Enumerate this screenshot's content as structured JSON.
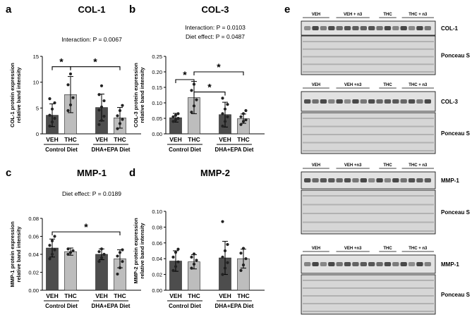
{
  "chart_data": [
    {
      "panel": "a",
      "title": "COL-1",
      "type": "bar",
      "ylabel": [
        "COL-1 protein expression",
        "relative band intensity"
      ],
      "ylim": [
        0,
        15
      ],
      "yticks": [
        0,
        5,
        10,
        15
      ],
      "categories": [
        "VEH",
        "THC",
        "VEH",
        "THC"
      ],
      "groups": [
        "Control Diet",
        "DHA+EPA Diet"
      ],
      "values": [
        3.6,
        7.6,
        5.1,
        3.1
      ],
      "errors": [
        2.2,
        3.5,
        2.6,
        2.0
      ],
      "points": [
        [
          1.5,
          2.3,
          3.0,
          3.6,
          4.8,
          6.0,
          6.8
        ],
        [
          4.5,
          5.6,
          7.0,
          9.5,
          11.6
        ],
        [
          1.8,
          2.6,
          3.4,
          4.6,
          5.2,
          6.4,
          7.6,
          9.3
        ],
        [
          1.0,
          2.0,
          2.8,
          3.5,
          4.5,
          5.5
        ]
      ],
      "annotation": "Interaction: P = 0.0067",
      "brackets": [
        {
          "from": 0,
          "to": 1,
          "y": 13,
          "label": "*"
        },
        {
          "from": 1,
          "to": 3,
          "y": 13,
          "label": "*"
        }
      ]
    },
    {
      "panel": "b",
      "title": "COL-3",
      "type": "bar",
      "ylabel": [
        "COL-3 protein expression",
        "relative band intensity"
      ],
      "ylim": [
        0,
        0.25
      ],
      "yticks": [
        "0.00",
        "0.05",
        "0.10",
        "0.15",
        "0.20",
        "0.25"
      ],
      "categories": [
        "VEH",
        "THC",
        "VEH",
        "THC"
      ],
      "groups": [
        "Control Diet",
        "DHA+EPA Diet"
      ],
      "values": [
        0.052,
        0.117,
        0.062,
        0.049
      ],
      "errors": [
        0.014,
        0.052,
        0.04,
        0.015
      ],
      "points": [
        [
          0.04,
          0.045,
          0.05,
          0.055,
          0.06,
          0.065
        ],
        [
          0.07,
          0.09,
          0.11,
          0.14,
          0.16
        ],
        [
          0.025,
          0.04,
          0.055,
          0.065,
          0.08,
          0.095,
          0.115
        ],
        [
          0.03,
          0.04,
          0.045,
          0.055,
          0.065,
          0.075
        ]
      ],
      "annotation": [
        "Interaction: P = 0.0103",
        "Diet effect: P = 0.0487"
      ],
      "brackets": [
        {
          "from": 0,
          "to": 1,
          "y": 0.175,
          "label": "*"
        },
        {
          "from": 1,
          "to": 2,
          "y": 0.135,
          "label": "*"
        },
        {
          "from": 1,
          "to": 3,
          "y": 0.2,
          "label": "*"
        }
      ]
    },
    {
      "panel": "c",
      "title": "MMP-1",
      "type": "bar",
      "ylabel": [
        "MMP-1 protein expression",
        "relative band intensity"
      ],
      "ylim": [
        0,
        0.08
      ],
      "yticks": [
        "0.00",
        "0.02",
        "0.04",
        "0.06",
        "0.08"
      ],
      "categories": [
        "VEH",
        "THC",
        "VEH",
        "THC"
      ],
      "groups": [
        "Control Diet",
        "DHA+EPA Diet"
      ],
      "values": [
        0.047,
        0.043,
        0.04,
        0.035
      ],
      "errors": [
        0.01,
        0.004,
        0.006,
        0.01
      ],
      "points": [
        [
          0.035,
          0.04,
          0.045,
          0.05,
          0.055,
          0.06
        ],
        [
          0.04,
          0.042,
          0.044,
          0.046
        ],
        [
          0.032,
          0.036,
          0.04,
          0.043,
          0.046
        ],
        [
          0.018,
          0.025,
          0.032,
          0.038,
          0.042,
          0.045
        ]
      ],
      "annotation": "Diet effect: P = 0.0189",
      "brackets": [
        {
          "from": 0,
          "to": 3,
          "y": 0.065,
          "label": "*"
        }
      ]
    },
    {
      "panel": "d",
      "title": "MMP-2",
      "type": "bar",
      "ylabel": [
        "MMP-2 protein expression",
        "relative band intensity"
      ],
      "ylim": [
        0,
        0.1
      ],
      "yticks": [
        "0.00",
        "0.02",
        "0.04",
        "0.06",
        "0.08",
        "0.10"
      ],
      "categories": [
        "VEH",
        "THC",
        "VEH",
        "THC"
      ],
      "groups": [
        "Control Diet",
        "DHA+EPA Diet"
      ],
      "values": [
        0.037,
        0.036,
        0.041,
        0.04
      ],
      "errors": [
        0.013,
        0.009,
        0.021,
        0.012
      ],
      "points": [
        [
          0.025,
          0.03,
          0.036,
          0.042,
          0.048,
          0.052
        ],
        [
          0.028,
          0.033,
          0.038,
          0.042,
          0.046
        ],
        [
          0.02,
          0.028,
          0.035,
          0.042,
          0.05,
          0.058,
          0.087
        ],
        [
          0.025,
          0.032,
          0.04,
          0.047,
          0.053
        ]
      ],
      "annotation": "",
      "brackets": []
    }
  ],
  "blots": {
    "panel_label": "e",
    "groups": [
      "VEH",
      "VEH + n3",
      "THC",
      "THC + n3"
    ],
    "rows": [
      {
        "groups": [
          "VEH",
          "VEH + n3",
          "THC",
          "THC + n3"
        ],
        "label": "COL-1",
        "ponceau": "Ponceau S"
      },
      {
        "groups": [
          "VEH",
          "VEH +n3",
          "THC",
          "THC + n3"
        ],
        "label": "COL-3",
        "ponceau": "Ponceau S"
      },
      {
        "groups": [
          "VEH",
          "VEH +n3",
          "THC",
          "THC + n3"
        ],
        "label": "MMP-1",
        "ponceau": "Ponceau S"
      },
      {
        "groups": [
          "VEH",
          "VEH +n3",
          "THC",
          "THC + n3"
        ],
        "label": "MMP-1",
        "ponceau": "Ponceau S"
      }
    ]
  },
  "colors": {
    "veh": "#4d4d4d",
    "thc": "#bdbdbd",
    "blot_band": "#2a2a2a",
    "membrane": "#d6d6d6"
  }
}
